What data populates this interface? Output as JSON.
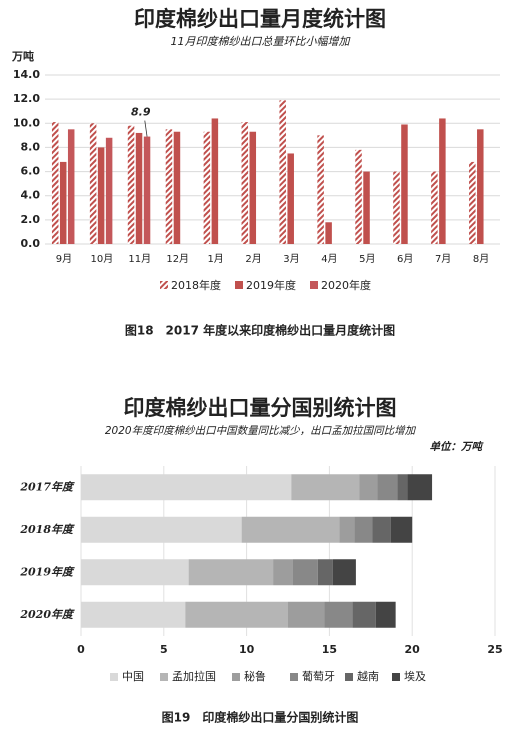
{
  "chart_data": [
    {
      "type": "bar",
      "title": "印度棉纱出口量月度统计图",
      "subtitle": "11月印度棉纱出口总量环比小幅增加",
      "y_label": "万吨",
      "caption": "图18　2017 年度以来印度棉纱出口量月度统计图",
      "categories": [
        "9月",
        "10月",
        "11月",
        "12月",
        "1月",
        "2月",
        "3月",
        "4月",
        "5月",
        "6月",
        "7月",
        "8月"
      ],
      "series": [
        {
          "name": "2018年度",
          "color": "#c0504d",
          "pattern": "hatch",
          "values": [
            10.1,
            10.0,
            9.8,
            9.5,
            9.3,
            10.1,
            11.9,
            9.0,
            7.8,
            6.0,
            6.0,
            6.8
          ]
        },
        {
          "name": "2019年度",
          "color": "#c0504d",
          "values": [
            6.8,
            8.0,
            9.2,
            9.3,
            10.4,
            9.3,
            7.5,
            1.8,
            6.0,
            9.9,
            10.4,
            9.5
          ]
        },
        {
          "name": "2020年度",
          "color": "#c4575a",
          "values": [
            9.5,
            8.8,
            8.9,
            null,
            null,
            null,
            null,
            null,
            null,
            null,
            null,
            null
          ],
          "value_labels": [
            null,
            null,
            "8.9",
            null,
            null,
            null,
            null,
            null,
            null,
            null,
            null,
            null
          ]
        }
      ],
      "ylim": [
        0,
        14
      ],
      "yticks": [
        {
          "value": 0,
          "label": "0.0"
        },
        {
          "value": 2,
          "label": "2.0"
        },
        {
          "value": 4,
          "label": "4.0"
        },
        {
          "value": 6,
          "label": "6.0"
        },
        {
          "value": 8,
          "label": "8.0"
        },
        {
          "value": 10,
          "label": "10.0"
        },
        {
          "value": 12,
          "label": "12.0"
        },
        {
          "value": 14,
          "label": "14.0"
        }
      ],
      "grid": true
    },
    {
      "type": "barh",
      "title": "印度棉纱出口量分国别统计图",
      "subtitle": "2020年度印度棉纱出口中国数量同比减少，出口孟加拉国同比增加",
      "unit": "单位：万吨",
      "caption": "图19　印度棉纱出口量分国别统计图",
      "categories": [
        "2017年度",
        "2018年度",
        "2019年度",
        "2020年度"
      ],
      "series": [
        {
          "name": "中国",
          "color": "#d9d9d9",
          "values": [
            12.7,
            9.7,
            6.5,
            6.3
          ]
        },
        {
          "name": "孟加拉国",
          "color": "#b5b5b5",
          "values": [
            4.1,
            5.9,
            5.1,
            6.2
          ]
        },
        {
          "name": "秘鲁",
          "color": "#9d9d9d",
          "values": [
            1.1,
            0.9,
            1.2,
            2.2
          ]
        },
        {
          "name": "葡萄牙",
          "color": "#888888",
          "values": [
            1.2,
            1.1,
            1.5,
            1.7
          ]
        },
        {
          "name": "越南",
          "color": "#666666",
          "values": [
            0.6,
            1.1,
            0.9,
            1.4
          ]
        },
        {
          "name": "埃及",
          "color": "#444444",
          "values": [
            1.5,
            1.3,
            1.4,
            1.2
          ]
        }
      ],
      "xlim": [
        0,
        25
      ],
      "xticks": [
        0,
        5,
        10,
        15,
        20,
        25
      ],
      "grid": true,
      "stacked": true
    }
  ]
}
